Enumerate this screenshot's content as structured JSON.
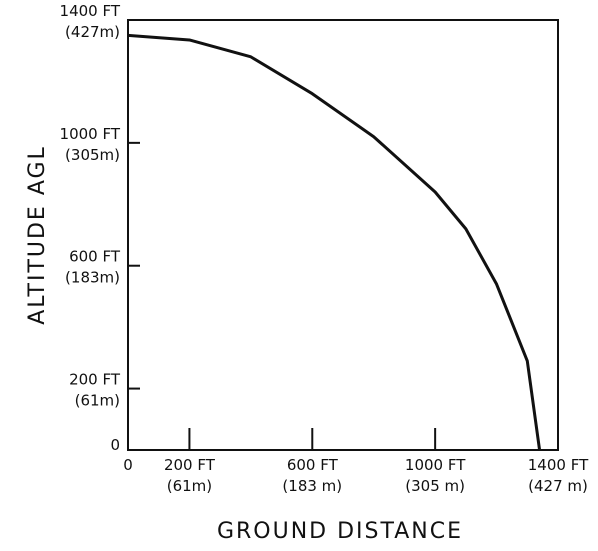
{
  "chart_data": {
    "type": "line",
    "x_label": "GROUND DISTANCE",
    "y_label": "ALTITUDE AGL",
    "x": [
      0,
      200,
      400,
      600,
      800,
      1000,
      1100,
      1200,
      1300,
      1340
    ],
    "series": [
      {
        "color": "#111111",
        "values": [
          1350,
          1335,
          1280,
          1160,
          1020,
          840,
          720,
          540,
          290,
          0
        ]
      }
    ],
    "xlim": [
      0,
      1400
    ],
    "ylim": [
      0,
      1400
    ],
    "xticks": [
      0,
      {
        "value": 200,
        "label": "200 FT\n(61m)"
      },
      {
        "value": 600,
        "label": "600 FT\n(183 m)"
      },
      {
        "value": 1000,
        "label": "1000 FT\n(305 m)"
      },
      {
        "value": 1400,
        "label": "1400 FT\n(427 m)"
      }
    ],
    "yticks": [
      0,
      {
        "value": 200,
        "label": "200 FT\n(61m)"
      },
      {
        "value": 600,
        "label": "600 FT\n(183m)"
      },
      {
        "value": 1000,
        "label": "1000 FT\n(305m)"
      },
      {
        "value": 1400,
        "label": "1400 FT\n(427m)"
      }
    ],
    "grid": false
  }
}
